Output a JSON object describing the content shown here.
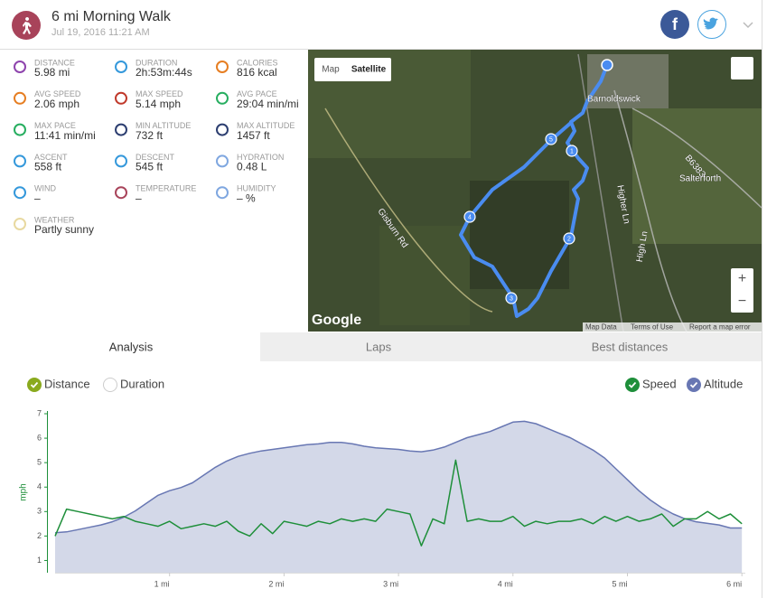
{
  "header": {
    "title": "6 mi Morning Walk",
    "date": "Jul 19, 2016 11:21 AM",
    "facebook_icon": "f"
  },
  "stats": [
    {
      "label": "DISTANCE",
      "value": "5.98 mi"
    },
    {
      "label": "DURATION",
      "value": "2h:53m:44s"
    },
    {
      "label": "CALORIES",
      "value": "816 kcal"
    },
    {
      "label": "AVG SPEED",
      "value": "2.06 mph"
    },
    {
      "label": "MAX SPEED",
      "value": "5.14 mph"
    },
    {
      "label": "AVG PACE",
      "value": "29:04 min/mi"
    },
    {
      "label": "MAX PACE",
      "value": "11:41 min/mi"
    },
    {
      "label": "MIN ALTITUDE",
      "value": "732 ft"
    },
    {
      "label": "MAX ALTITUDE",
      "value": "1457 ft"
    },
    {
      "label": "ASCENT",
      "value": "558 ft"
    },
    {
      "label": "DESCENT",
      "value": "545 ft"
    },
    {
      "label": "HYDRATION",
      "value": "0.48 L"
    },
    {
      "label": "WIND",
      "value": "–"
    },
    {
      "label": "TEMPERATURE",
      "value": "–"
    },
    {
      "label": "HUMIDITY",
      "value": "– %"
    },
    {
      "label": "WEATHER",
      "value": "Partly sunny"
    }
  ],
  "map": {
    "buttons": [
      "Map",
      "Satellite"
    ],
    "places": [
      "Barnoldswick",
      "Salterforth",
      "Gisburn Rd",
      "Higher Ln",
      "High Ln",
      "B6383"
    ],
    "markers": [
      "1",
      "2",
      "3",
      "4",
      "5"
    ],
    "logo": "Google",
    "footer": [
      "Map Data",
      "Terms of Use",
      "Report a map error"
    ],
    "zoom": [
      "+",
      "−"
    ]
  },
  "tabs": [
    "Analysis",
    "Laps",
    "Best distances"
  ],
  "chart_data": {
    "type": "line",
    "x_modes": [
      "Distance",
      "Duration"
    ],
    "y_label": "mph",
    "x": [
      0,
      0.1,
      0.2,
      0.3,
      0.4,
      0.5,
      0.6,
      0.7,
      0.8,
      0.9,
      1,
      1.1,
      1.2,
      1.3,
      1.4,
      1.5,
      1.6,
      1.7,
      1.8,
      1.9,
      2,
      2.1,
      2.2,
      2.3,
      2.4,
      2.5,
      2.6,
      2.7,
      2.8,
      2.9,
      3,
      3.1,
      3.2,
      3.3,
      3.4,
      3.5,
      3.6,
      3.7,
      3.8,
      3.9,
      4,
      4.1,
      4.2,
      4.3,
      4.4,
      4.5,
      4.6,
      4.7,
      4.8,
      4.9,
      5,
      5.1,
      5.2,
      5.3,
      5.4,
      5.5,
      5.6,
      5.7,
      5.8,
      5.9,
      6
    ],
    "xlim": [
      0,
      6.03
    ],
    "xticks": [
      {
        "value": 1,
        "label": "1 mi"
      },
      {
        "value": 2,
        "label": "2 mi"
      },
      {
        "value": 3,
        "label": "3 mi"
      },
      {
        "value": 4,
        "label": "4 mi"
      },
      {
        "value": 5,
        "label": "5 mi"
      },
      {
        "value": 6,
        "label": "6 mi"
      }
    ],
    "ylim": [
      0.5,
      7
    ],
    "yticks": [
      1,
      2,
      3,
      4,
      5,
      6,
      7
    ],
    "y2lim": [
      483,
      1504
    ],
    "series": [
      {
        "name": "Speed",
        "color": "#1e8f3a",
        "values": [
          2.0,
          3.1,
          3.0,
          2.9,
          2.8,
          2.7,
          2.8,
          2.6,
          2.5,
          2.4,
          2.6,
          2.3,
          2.4,
          2.5,
          2.4,
          2.6,
          2.2,
          2.0,
          2.5,
          2.1,
          2.6,
          2.5,
          2.4,
          2.6,
          2.5,
          2.7,
          2.6,
          2.7,
          2.6,
          3.1,
          3.0,
          2.9,
          1.6,
          2.7,
          2.5,
          5.1,
          2.6,
          2.7,
          2.6,
          2.6,
          2.8,
          2.4,
          2.6,
          2.5,
          2.6,
          2.6,
          2.7,
          2.5,
          2.8,
          2.6,
          2.8,
          2.6,
          2.7,
          2.9,
          2.4,
          2.7,
          2.7,
          3.0,
          2.7,
          2.9,
          2.5
        ]
      },
      {
        "name": "Altitude",
        "color": "#6877b3",
        "axis": "y2",
        "fill": "#d3d8e8",
        "values": [
          740,
          745,
          760,
          775,
          790,
          810,
          840,
          880,
          930,
          980,
          1010,
          1030,
          1060,
          1110,
          1160,
          1200,
          1230,
          1250,
          1265,
          1275,
          1285,
          1295,
          1305,
          1310,
          1320,
          1320,
          1310,
          1295,
          1285,
          1280,
          1275,
          1265,
          1260,
          1270,
          1290,
          1320,
          1350,
          1370,
          1390,
          1420,
          1450,
          1455,
          1440,
          1410,
          1380,
          1350,
          1310,
          1270,
          1220,
          1150,
          1080,
          1010,
          950,
          900,
          860,
          830,
          810,
          800,
          790,
          770,
          770
        ]
      }
    ]
  }
}
